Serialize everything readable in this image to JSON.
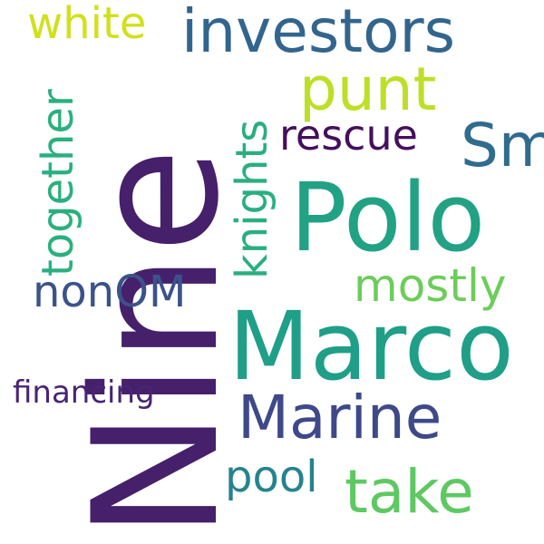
{
  "words": [
    {
      "text": "Nine",
      "color": "#46206b"
    },
    {
      "text": "Marco",
      "color": "#1f9f88"
    },
    {
      "text": "Polo",
      "color": "#22a284"
    },
    {
      "text": "investors",
      "color": "#32658e"
    },
    {
      "text": "punt",
      "color": "#bddf26"
    },
    {
      "text": "Sm",
      "color": "#2f6c8e"
    },
    {
      "text": "Marine",
      "color": "#3e4989"
    },
    {
      "text": "take",
      "color": "#5ec962"
    },
    {
      "text": "rescue",
      "color": "#440f5c"
    },
    {
      "text": "together",
      "color": "#2ab07f"
    },
    {
      "text": "knights",
      "color": "#29af7f"
    },
    {
      "text": "mostly",
      "color": "#6ccd5a"
    },
    {
      "text": "white",
      "color": "#d0e11c"
    },
    {
      "text": "nonOM",
      "color": "#3b528b"
    },
    {
      "text": "financing",
      "color": "#482475"
    },
    {
      "text": "pool",
      "color": "#25838e"
    }
  ]
}
